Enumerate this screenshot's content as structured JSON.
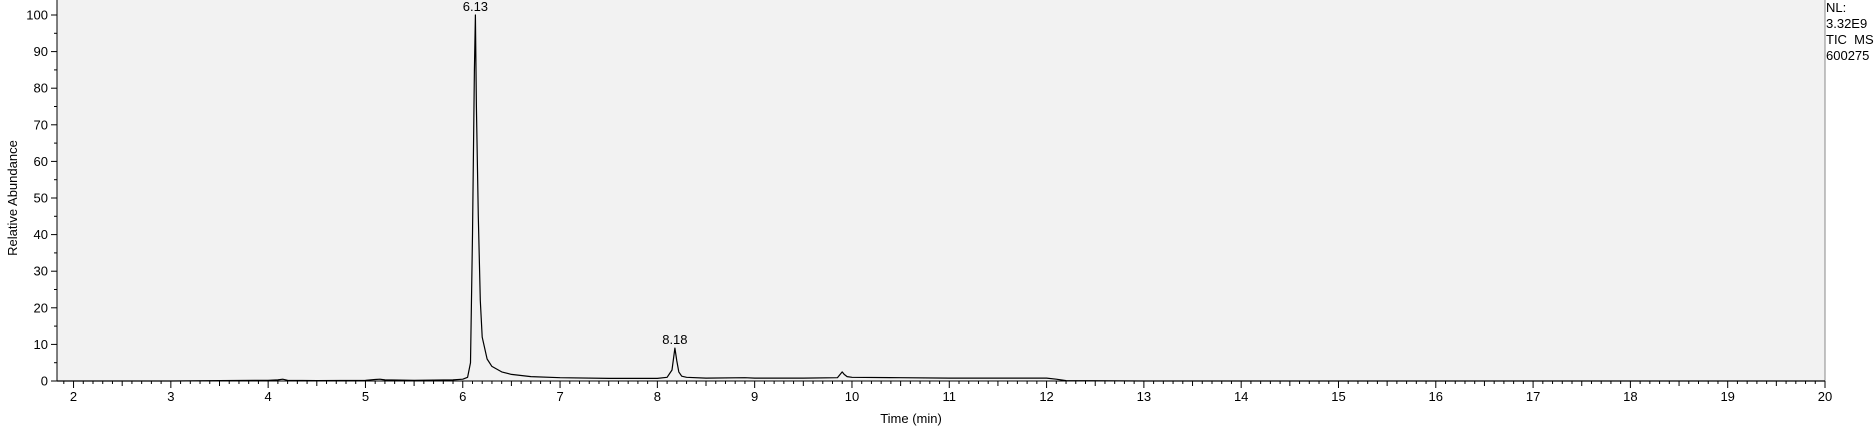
{
  "info": {
    "nl_label": "NL:",
    "nl_value": "3.32E9",
    "scan_filter": "TIC  MS",
    "sample": "600275"
  },
  "chart_data": {
    "type": "line",
    "title": "",
    "xlabel": "Time (min)",
    "ylabel": "Relative Abundance",
    "xlim": [
      1.83,
      20.0
    ],
    "ylim": [
      0,
      100
    ],
    "x_ticks": [
      2,
      3,
      4,
      5,
      6,
      7,
      8,
      9,
      10,
      11,
      12,
      13,
      14,
      15,
      16,
      17,
      18,
      19,
      20
    ],
    "y_ticks": [
      0,
      10,
      20,
      30,
      40,
      50,
      60,
      70,
      80,
      90,
      100
    ],
    "grid": false,
    "background": "#f2f2f2",
    "line_color": "#000000",
    "peak_labels": [
      {
        "x": 6.13,
        "y": 100,
        "text": "6.13"
      },
      {
        "x": 8.18,
        "y": 9,
        "text": "8.18"
      }
    ],
    "series": [
      {
        "x": [
          1.83,
          2.5,
          3.0,
          3.5,
          4.0,
          4.1,
          4.15,
          4.2,
          4.5,
          5.0,
          5.1,
          5.15,
          5.2,
          5.5,
          5.9,
          6.0,
          6.05,
          6.08,
          6.1,
          6.12,
          6.13,
          6.14,
          6.16,
          6.18,
          6.2,
          6.25,
          6.3,
          6.4,
          6.5,
          6.7,
          7.0,
          7.5,
          8.0,
          8.1,
          8.15,
          8.18,
          8.2,
          8.22,
          8.25,
          8.3,
          8.5,
          8.9,
          9.0,
          9.5,
          9.85,
          9.9,
          9.92,
          9.95,
          10.0,
          10.5,
          11.0,
          11.5,
          12.0,
          12.1,
          12.2,
          13.0,
          14.0,
          15.0,
          16.0,
          17.0,
          18.0,
          19.0,
          20.0
        ],
        "y": [
          0,
          0,
          0,
          0.1,
          0.2,
          0.3,
          0.5,
          0.2,
          0.1,
          0.2,
          0.4,
          0.5,
          0.3,
          0.2,
          0.3,
          0.5,
          1.0,
          5.0,
          40.0,
          85.0,
          100.0,
          75.0,
          45.0,
          22.0,
          12.0,
          6.0,
          4.0,
          2.5,
          1.8,
          1.2,
          0.9,
          0.7,
          0.7,
          1.0,
          3.0,
          9.0,
          5.5,
          2.5,
          1.3,
          1.0,
          0.8,
          0.9,
          0.8,
          0.8,
          0.9,
          2.5,
          1.8,
          1.2,
          1.0,
          0.9,
          0.8,
          0.8,
          0.8,
          0.5,
          0.1,
          0.0,
          0.0,
          0.0,
          0.0,
          0.0,
          0.0,
          0.0,
          0.0
        ]
      }
    ]
  }
}
